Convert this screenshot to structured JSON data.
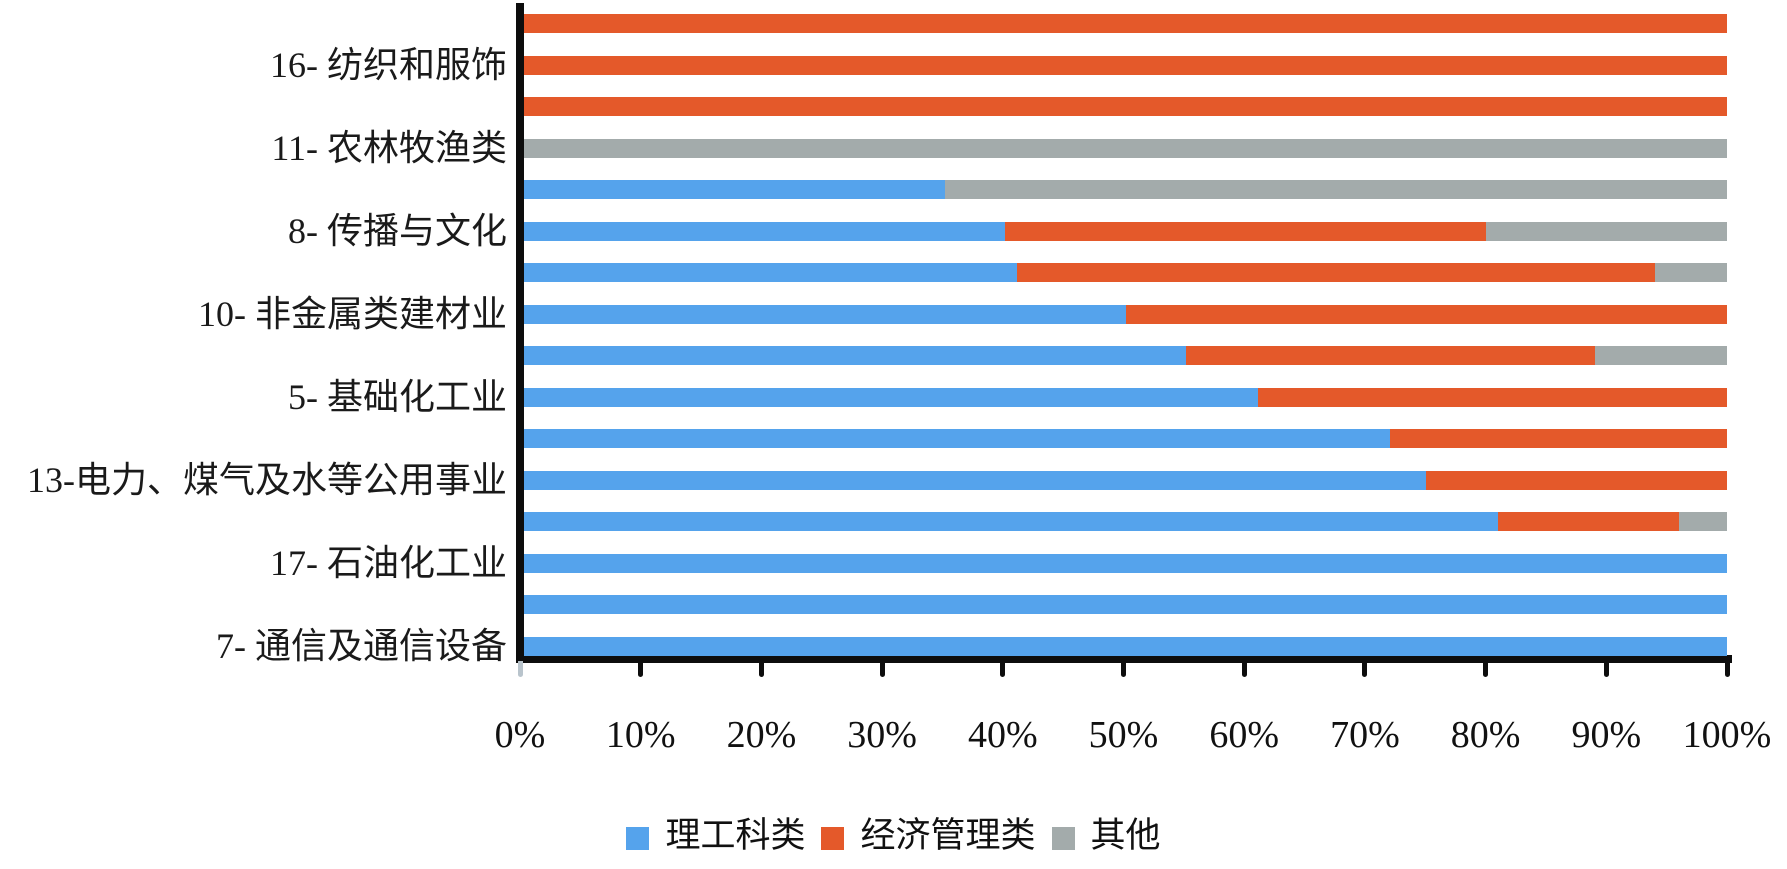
{
  "chart_data": {
    "type": "bar",
    "variant": "horizontal-stacked-100pct",
    "title": "",
    "xlabel": "",
    "ylabel": "",
    "xlim": [
      0,
      100
    ],
    "x_ticks": [
      "0%",
      "10%",
      "20%",
      "30%",
      "40%",
      "50%",
      "60%",
      "70%",
      "80%",
      "90%",
      "100%"
    ],
    "grid": false,
    "legend_position": "bottom",
    "series_names": [
      "理工科类",
      "经济管理类",
      "其他"
    ],
    "legend": [
      {
        "label": "理工科类",
        "color": "#55A3EC"
      },
      {
        "label": "经济管理类",
        "color": "#E4592A"
      },
      {
        "label": "其他",
        "color": "#A3ABAB"
      }
    ],
    "rows": [
      {
        "label": "",
        "values": [
          0,
          100,
          0
        ]
      },
      {
        "label": "16- 纺织和服饰",
        "values": [
          0,
          100,
          0
        ]
      },
      {
        "label": "",
        "values": [
          0,
          100,
          0
        ]
      },
      {
        "label": "11- 农林牧渔类",
        "values": [
          0,
          0,
          100
        ]
      },
      {
        "label": "",
        "values": [
          35,
          0,
          65
        ]
      },
      {
        "label": "8- 传播与文化",
        "values": [
          40,
          40,
          20
        ]
      },
      {
        "label": "",
        "values": [
          41,
          53,
          6
        ]
      },
      {
        "label": "10- 非金属类建材业",
        "values": [
          50,
          50,
          0
        ]
      },
      {
        "label": "",
        "values": [
          55,
          34,
          11
        ]
      },
      {
        "label": "5- 基础化工业",
        "values": [
          61,
          39,
          0
        ]
      },
      {
        "label": "",
        "values": [
          72,
          28,
          0
        ]
      },
      {
        "label": "13-电力、煤气及水等公用事业",
        "values": [
          75,
          25,
          0
        ]
      },
      {
        "label": "",
        "values": [
          81,
          15,
          4
        ]
      },
      {
        "label": "17- 石油化工业",
        "values": [
          100,
          0,
          0
        ]
      },
      {
        "label": "",
        "values": [
          100,
          0,
          0
        ]
      },
      {
        "label": "7- 通信及通信设备",
        "values": [
          100,
          0,
          0
        ]
      }
    ]
  },
  "colors": {
    "axis": "#0d0d0d",
    "background": "#ffffff",
    "text": "#111111"
  }
}
